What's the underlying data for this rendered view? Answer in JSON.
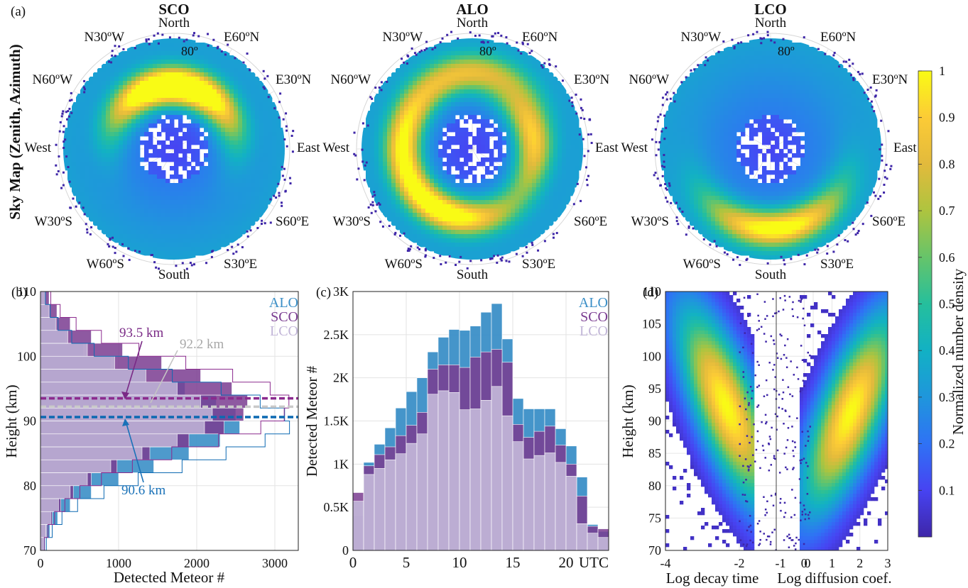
{
  "panel_labels": [
    "(a)",
    "(b)",
    "(c)",
    "(d)"
  ],
  "sky": {
    "row_label": "Sky Map (Zenith, Azimuth)",
    "ring_label": "80º",
    "directions": [
      "North",
      "E60ºN",
      "E30ºN",
      "East",
      "S60ºE",
      "S30ºE",
      "South",
      "W60ºS",
      "W30ºS",
      "West",
      "N60ºW",
      "N30ºW"
    ],
    "stations": [
      {
        "title": "SCO",
        "hotspots": [
          {
            "azimuth_deg": 340,
            "zenith_frac": 0.58,
            "strength": 1.0
          },
          {
            "azimuth_deg": 30,
            "zenith_frac": 0.55,
            "strength": 0.85
          }
        ]
      },
      {
        "title": "ALO",
        "hotspots": [
          {
            "azimuth_deg": 200,
            "zenith_frac": 0.62,
            "strength": 1.0
          },
          {
            "azimuth_deg": 80,
            "zenith_frac": 0.55,
            "strength": 0.8
          },
          {
            "azimuth_deg": 280,
            "zenith_frac": 0.62,
            "strength": 0.8
          },
          {
            "azimuth_deg": 0,
            "zenith_frac": 0.7,
            "strength": 0.6
          }
        ]
      },
      {
        "title": "LCO",
        "hotspots": [
          {
            "azimuth_deg": 175,
            "zenith_frac": 0.72,
            "strength": 1.0
          }
        ]
      }
    ]
  },
  "colorbar": {
    "label": "Normalized number density",
    "ticks": [
      "1",
      "0.9",
      "0.8",
      "0.7",
      "0.6",
      "0.5",
      "0.4",
      "0.3",
      "0.2",
      "0.1"
    ],
    "colors": [
      "#3e26a8",
      "#4743f2",
      "#2f72f5",
      "#1f96dc",
      "#12b1c4",
      "#25bf9c",
      "#66c46a",
      "#aec43f",
      "#e2ba3c",
      "#fccb36",
      "#f9fb15"
    ]
  },
  "colors": {
    "ALO": "#3b8fc7",
    "SCO": "#7a3c91",
    "LCO": "#c2b6d8",
    "ALO_line": "#0c69b2",
    "SCO_line": "#8b2a8e",
    "LCO_line": "#c9c9c9"
  },
  "chart_data": [
    {
      "type": "bar",
      "panel": "(b)",
      "xlabel": "Detected Meteor #",
      "ylabel": "Height (km)",
      "xlim": [
        0,
        3300
      ],
      "ylim": [
        70,
        110
      ],
      "xticks": [
        "0",
        "1000",
        "2000",
        "3000"
      ],
      "yticks": [
        "70",
        "80",
        "90",
        "100",
        "110"
      ],
      "legend": [
        "ALO",
        "SCO",
        "LCO"
      ],
      "heights_km": [
        71,
        73,
        75,
        77,
        79,
        81,
        83,
        85,
        87,
        89,
        91,
        93,
        95,
        97,
        99,
        101,
        103,
        105,
        107,
        109
      ],
      "series": [
        {
          "name": "ALO",
          "values": [
            60,
            120,
            220,
            380,
            650,
            1000,
            1450,
            1900,
            2300,
            2550,
            2500,
            2250,
            1850,
            1350,
            900,
            550,
            320,
            180,
            100,
            50
          ]
        },
        {
          "name": "SCO",
          "values": [
            40,
            80,
            150,
            260,
            420,
            650,
            980,
            1400,
            1900,
            2350,
            2600,
            2650,
            2450,
            2050,
            1550,
            1050,
            650,
            380,
            210,
            110
          ]
        },
        {
          "name": "LCO",
          "values": [
            30,
            70,
            130,
            230,
            380,
            600,
            900,
            1300,
            1750,
            2100,
            2200,
            2050,
            1750,
            1350,
            950,
            600,
            350,
            200,
            110,
            60
          ]
        }
      ],
      "annotations": [
        {
          "text": "93.5 km",
          "series": "SCO",
          "y": 93.5
        },
        {
          "text": "92.2 km",
          "series": "LCO",
          "y": 92.2
        },
        {
          "text": "90.6 km",
          "series": "ALO",
          "y": 90.6
        }
      ]
    },
    {
      "type": "bar",
      "panel": "(c)",
      "xlabel": "UTC",
      "ylabel": "Detected Meteor #",
      "xlim": [
        0,
        24
      ],
      "ylim": [
        0,
        3000
      ],
      "xticks": [
        "0",
        "5",
        "10",
        "15",
        "20"
      ],
      "yticks": [
        "0",
        "0.5K",
        "1K",
        "1.5K",
        "2K",
        "2.5K",
        "3K"
      ],
      "legend": [
        "ALO",
        "SCO",
        "LCO"
      ],
      "categories": [
        "0",
        "1",
        "2",
        "3",
        "4",
        "5",
        "6",
        "7",
        "8",
        "9",
        "10",
        "11",
        "12",
        "13",
        "14",
        "15",
        "16",
        "17",
        "18",
        "19",
        "20",
        "21",
        "22",
        "23"
      ],
      "series": [
        {
          "name": "ALO",
          "values": [
            400,
            1020,
            1230,
            1420,
            1650,
            1840,
            2000,
            2300,
            2470,
            2560,
            2550,
            2600,
            2760,
            2860,
            2450,
            1760,
            1640,
            1640,
            1640,
            1410,
            1210,
            850,
            300,
            220
          ]
        },
        {
          "name": "SCO",
          "values": [
            670,
            980,
            1110,
            1200,
            1330,
            1450,
            1600,
            2100,
            2150,
            2150,
            2120,
            2240,
            2300,
            2330,
            2180,
            1460,
            1310,
            1380,
            1440,
            1220,
            1000,
            630,
            280,
            250
          ]
        },
        {
          "name": "LCO",
          "values": [
            570,
            880,
            950,
            1050,
            1120,
            1240,
            1350,
            1810,
            1850,
            1830,
            1630,
            1640,
            1740,
            1900,
            1560,
            1260,
            1060,
            1100,
            1130,
            1020,
            860,
            310,
            200,
            150
          ]
        }
      ]
    },
    {
      "type": "heatmap",
      "panel": "(d)",
      "xlabel_left": "Log decay time",
      "xlabel_right": "Log diffusion coef.",
      "ylabel": "Height (km)",
      "ylim": [
        70,
        110
      ],
      "left_xlim": [
        -4,
        -1
      ],
      "right_xlim": [
        -1,
        3
      ],
      "left_xticks": [
        "-4",
        "-2",
        "0"
      ],
      "right_xticks": [
        "-1",
        "0",
        "1",
        "2",
        "3"
      ],
      "yticks": [
        "70",
        "75",
        "80",
        "85",
        "90",
        "95",
        "100",
        "105",
        "110"
      ],
      "peaks": [
        {
          "x": -2.4,
          "y": 92.5,
          "label": "decay"
        },
        {
          "x": 1.6,
          "y": 91.5,
          "label": "diffusion"
        }
      ]
    }
  ]
}
